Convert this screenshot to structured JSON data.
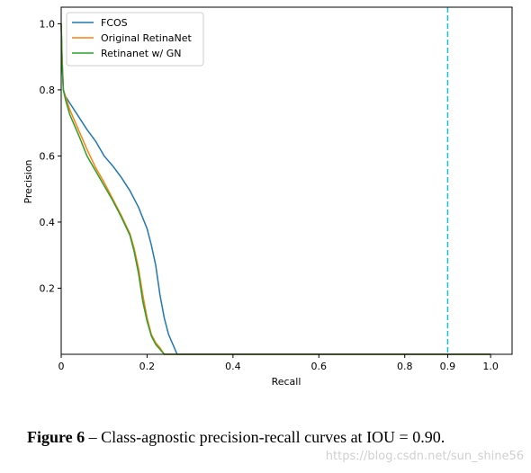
{
  "chart_data": {
    "type": "line",
    "xlabel": "Recall",
    "ylabel": "Precision",
    "xlim": [
      0,
      1.05
    ],
    "ylim": [
      0,
      1.05
    ],
    "xticks": [
      {
        "value": 0,
        "label": "0"
      },
      {
        "value": 0.2,
        "label": "0.2"
      },
      {
        "value": 0.4,
        "label": "0.4"
      },
      {
        "value": 0.6,
        "label": "0.6"
      },
      {
        "value": 0.8,
        "label": "0.8"
      },
      {
        "value": 0.9,
        "label": "0.9"
      },
      {
        "value": 1.0,
        "label": "1.0"
      }
    ],
    "yticks": [
      {
        "value": 0.2,
        "label": "0.2"
      },
      {
        "value": 0.4,
        "label": "0.4"
      },
      {
        "value": 0.6,
        "label": "0.6"
      },
      {
        "value": 0.8,
        "label": "0.8"
      },
      {
        "value": 1.0,
        "label": "1.0"
      }
    ],
    "grid": false,
    "legend_position": "top-left",
    "reference_line": {
      "x": 0.9,
      "style": "dashed",
      "color": "#17becf"
    },
    "series": [
      {
        "name": "FCOS",
        "color": "#1f77b4",
        "points": [
          [
            0,
            1.0
          ],
          [
            0.002,
            0.9
          ],
          [
            0.005,
            0.8
          ],
          [
            0.01,
            0.78
          ],
          [
            0.02,
            0.76
          ],
          [
            0.04,
            0.72
          ],
          [
            0.06,
            0.68
          ],
          [
            0.08,
            0.645
          ],
          [
            0.1,
            0.6
          ],
          [
            0.12,
            0.57
          ],
          [
            0.14,
            0.535
          ],
          [
            0.16,
            0.495
          ],
          [
            0.18,
            0.445
          ],
          [
            0.2,
            0.38
          ],
          [
            0.21,
            0.33
          ],
          [
            0.22,
            0.27
          ],
          [
            0.23,
            0.18
          ],
          [
            0.24,
            0.11
          ],
          [
            0.25,
            0.06
          ],
          [
            0.26,
            0.03
          ],
          [
            0.27,
            0.0
          ],
          [
            0.3,
            0.0
          ],
          [
            1.0,
            0.0
          ]
        ]
      },
      {
        "name": "Original RetinaNet",
        "color": "#ff7f0e",
        "points": [
          [
            0,
            1.0
          ],
          [
            0.002,
            0.9
          ],
          [
            0.005,
            0.8
          ],
          [
            0.01,
            0.78
          ],
          [
            0.02,
            0.74
          ],
          [
            0.04,
            0.68
          ],
          [
            0.06,
            0.62
          ],
          [
            0.08,
            0.565
          ],
          [
            0.1,
            0.52
          ],
          [
            0.12,
            0.47
          ],
          [
            0.14,
            0.42
          ],
          [
            0.16,
            0.365
          ],
          [
            0.17,
            0.32
          ],
          [
            0.18,
            0.26
          ],
          [
            0.19,
            0.18
          ],
          [
            0.2,
            0.11
          ],
          [
            0.21,
            0.06
          ],
          [
            0.22,
            0.035
          ],
          [
            0.23,
            0.02
          ],
          [
            0.24,
            0.0
          ],
          [
            0.3,
            0.0
          ],
          [
            1.0,
            0.0
          ]
        ]
      },
      {
        "name": "Retinanet w/ GN",
        "color": "#2ca02c",
        "points": [
          [
            0,
            1.0
          ],
          [
            0.002,
            0.88
          ],
          [
            0.005,
            0.8
          ],
          [
            0.01,
            0.77
          ],
          [
            0.02,
            0.725
          ],
          [
            0.04,
            0.665
          ],
          [
            0.06,
            0.6
          ],
          [
            0.08,
            0.555
          ],
          [
            0.1,
            0.51
          ],
          [
            0.12,
            0.465
          ],
          [
            0.14,
            0.415
          ],
          [
            0.16,
            0.36
          ],
          [
            0.17,
            0.31
          ],
          [
            0.18,
            0.245
          ],
          [
            0.19,
            0.16
          ],
          [
            0.2,
            0.1
          ],
          [
            0.21,
            0.055
          ],
          [
            0.22,
            0.03
          ],
          [
            0.23,
            0.015
          ],
          [
            0.24,
            0.0
          ],
          [
            0.3,
            0.0
          ],
          [
            1.0,
            0.0
          ]
        ]
      }
    ]
  },
  "caption": {
    "label": "Figure 6",
    "text": " – Class-agnostic precision-recall curves at IOU = 0.90."
  },
  "watermark": "https://blog.csdn.net/sun_shine56"
}
